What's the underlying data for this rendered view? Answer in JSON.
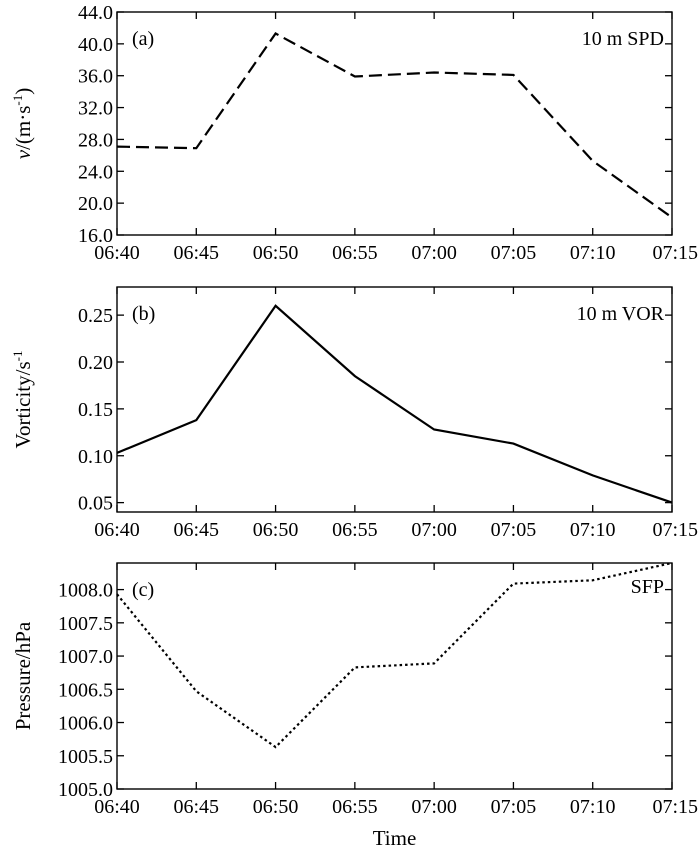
{
  "chart_data": [
    {
      "type": "line",
      "panel_label": "(a)",
      "series_label": "10 m SPD",
      "ylabel_italic": "v",
      "ylabel_rest": "/(m·s",
      "ylabel_sup": "-1",
      "ylabel_end": ")",
      "xlabel": "",
      "categories": [
        "06:40",
        "06:45",
        "06:50",
        "06:55",
        "07:00",
        "07:05",
        "07:10",
        "07:15"
      ],
      "values": [
        27.1,
        26.9,
        41.3,
        35.9,
        36.4,
        36.1,
        25.3,
        18.2
      ],
      "ylim": [
        16.0,
        44.0
      ],
      "yticks": [
        "16.0",
        "20.0",
        "24.0",
        "28.0",
        "32.0",
        "36.0",
        "40.0",
        "44.0"
      ],
      "line_style": "dashed",
      "color": "#000000",
      "grid": false
    },
    {
      "type": "line",
      "panel_label": "(b)",
      "series_label": "10 m VOR",
      "ylabel_rest": "Vorticity/s",
      "ylabel_sup": "-1",
      "xlabel": "",
      "categories": [
        "06:40",
        "06:45",
        "06:50",
        "06:55",
        "07:00",
        "07:05",
        "07:10",
        "07:15"
      ],
      "values": [
        0.103,
        0.138,
        0.26,
        0.185,
        0.128,
        0.113,
        0.079,
        0.05
      ],
      "ylim": [
        0.04,
        0.28
      ],
      "yticks": [
        "0.05",
        "0.10",
        "0.15",
        "0.20",
        "0.25"
      ],
      "line_style": "solid",
      "color": "#000000",
      "grid": false
    },
    {
      "type": "line",
      "panel_label": "(c)",
      "series_label": "SFP",
      "ylabel_rest": "Pressure/hPa",
      "xlabel": "Time",
      "categories": [
        "06:40",
        "06:45",
        "06:50",
        "06:55",
        "07:00",
        "07:05",
        "07:10",
        "07:15"
      ],
      "values": [
        1007.93,
        1006.47,
        1005.63,
        1006.83,
        1006.89,
        1008.09,
        1008.14,
        1008.4
      ],
      "ylim": [
        1005.0,
        1008.4
      ],
      "yticks": [
        "1005.0",
        "1005.5",
        "1006.0",
        "1006.5",
        "1007.0",
        "1007.5",
        "1008.0"
      ],
      "line_style": "dotted",
      "color": "#000000",
      "grid": false
    }
  ]
}
